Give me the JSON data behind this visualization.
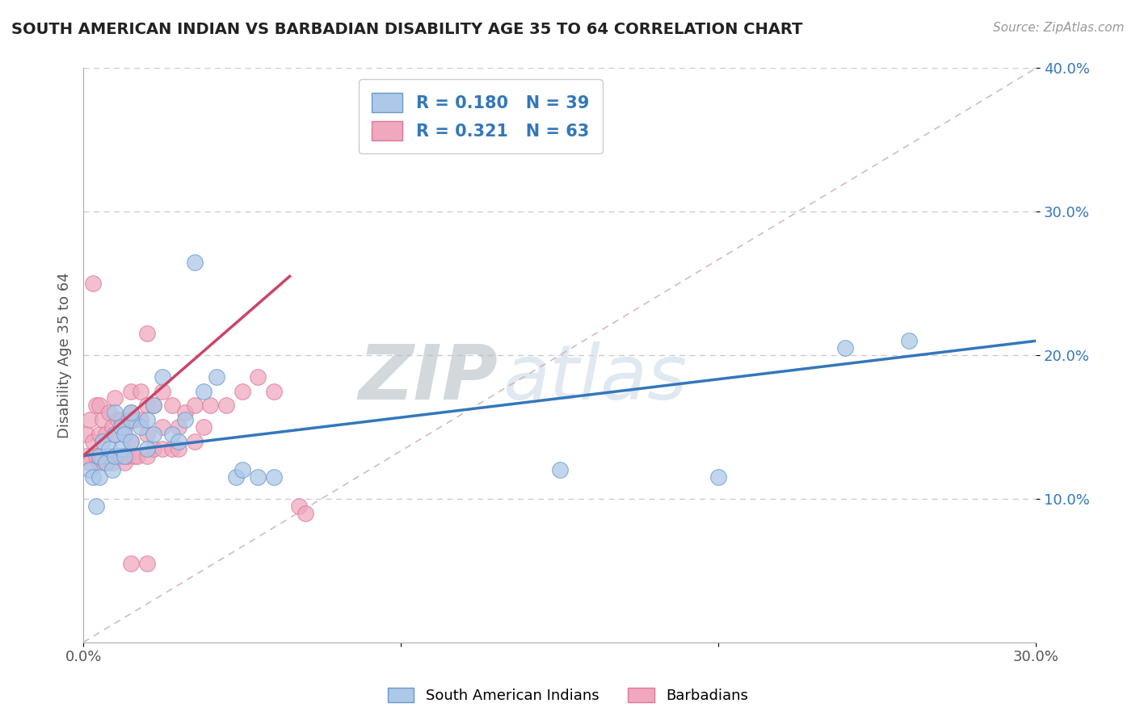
{
  "title": "SOUTH AMERICAN INDIAN VS BARBADIAN DISABILITY AGE 35 TO 64 CORRELATION CHART",
  "source": "Source: ZipAtlas.com",
  "ylabel": "Disability Age 35 to 64",
  "xlim": [
    0.0,
    0.3
  ],
  "ylim": [
    0.0,
    0.4
  ],
  "xticks": [
    0.0,
    0.1,
    0.2,
    0.3
  ],
  "yticks": [
    0.1,
    0.2,
    0.3,
    0.4
  ],
  "xtick_labels": [
    "0.0%",
    "10.0%",
    "20.0%",
    "30.0%"
  ],
  "ytick_labels": [
    "10.0%",
    "20.0%",
    "30.0%",
    "40.0%"
  ],
  "blue_R": 0.18,
  "blue_N": 39,
  "pink_R": 0.321,
  "pink_N": 63,
  "blue_color": "#adc8e8",
  "pink_color": "#f0a8be",
  "blue_edge_color": "#6699cc",
  "pink_edge_color": "#dd7799",
  "blue_line_color": "#3377bb",
  "pink_line_color": "#cc4466",
  "diag_line_color": "#ccaaaa",
  "legend_text_color": "#3377bb",
  "title_color": "#222222",
  "watermark_color": "#d0dce8",
  "background_color": "#ffffff",
  "blue_line_x0": 0.0,
  "blue_line_y0": 0.13,
  "blue_line_x1": 0.3,
  "blue_line_y1": 0.21,
  "pink_line_x0": 0.0,
  "pink_line_y0": 0.13,
  "pink_line_x1": 0.065,
  "pink_line_y1": 0.255,
  "blue_scatter_x": [
    0.002,
    0.003,
    0.004,
    0.005,
    0.005,
    0.006,
    0.007,
    0.008,
    0.009,
    0.01,
    0.01,
    0.01,
    0.012,
    0.012,
    0.013,
    0.013,
    0.015,
    0.015,
    0.015,
    0.018,
    0.02,
    0.02,
    0.022,
    0.022,
    0.025,
    0.028,
    0.03,
    0.032,
    0.035,
    0.038,
    0.042,
    0.048,
    0.05,
    0.055,
    0.06,
    0.15,
    0.2,
    0.24,
    0.26
  ],
  "blue_scatter_y": [
    0.12,
    0.115,
    0.095,
    0.13,
    0.115,
    0.14,
    0.125,
    0.135,
    0.12,
    0.13,
    0.145,
    0.16,
    0.135,
    0.15,
    0.13,
    0.145,
    0.14,
    0.155,
    0.16,
    0.15,
    0.135,
    0.155,
    0.145,
    0.165,
    0.185,
    0.145,
    0.14,
    0.155,
    0.265,
    0.175,
    0.185,
    0.115,
    0.12,
    0.115,
    0.115,
    0.12,
    0.115,
    0.205,
    0.21
  ],
  "pink_scatter_x": [
    0.001,
    0.001,
    0.002,
    0.002,
    0.003,
    0.003,
    0.004,
    0.004,
    0.005,
    0.005,
    0.005,
    0.006,
    0.006,
    0.007,
    0.007,
    0.008,
    0.008,
    0.009,
    0.009,
    0.01,
    0.01,
    0.01,
    0.011,
    0.011,
    0.012,
    0.012,
    0.013,
    0.013,
    0.014,
    0.015,
    0.015,
    0.015,
    0.016,
    0.016,
    0.017,
    0.018,
    0.018,
    0.02,
    0.02,
    0.02,
    0.02,
    0.022,
    0.022,
    0.025,
    0.025,
    0.025,
    0.028,
    0.028,
    0.03,
    0.03,
    0.032,
    0.035,
    0.035,
    0.038,
    0.04,
    0.045,
    0.05,
    0.055,
    0.06,
    0.068,
    0.07,
    0.015,
    0.02
  ],
  "pink_scatter_y": [
    0.13,
    0.145,
    0.125,
    0.155,
    0.14,
    0.25,
    0.13,
    0.165,
    0.125,
    0.145,
    0.165,
    0.13,
    0.155,
    0.125,
    0.145,
    0.13,
    0.16,
    0.125,
    0.15,
    0.13,
    0.145,
    0.17,
    0.13,
    0.155,
    0.13,
    0.155,
    0.125,
    0.15,
    0.13,
    0.14,
    0.16,
    0.175,
    0.13,
    0.155,
    0.13,
    0.155,
    0.175,
    0.13,
    0.145,
    0.165,
    0.215,
    0.135,
    0.165,
    0.135,
    0.15,
    0.175,
    0.135,
    0.165,
    0.135,
    0.15,
    0.16,
    0.14,
    0.165,
    0.15,
    0.165,
    0.165,
    0.175,
    0.185,
    0.175,
    0.095,
    0.09,
    0.055,
    0.055
  ]
}
